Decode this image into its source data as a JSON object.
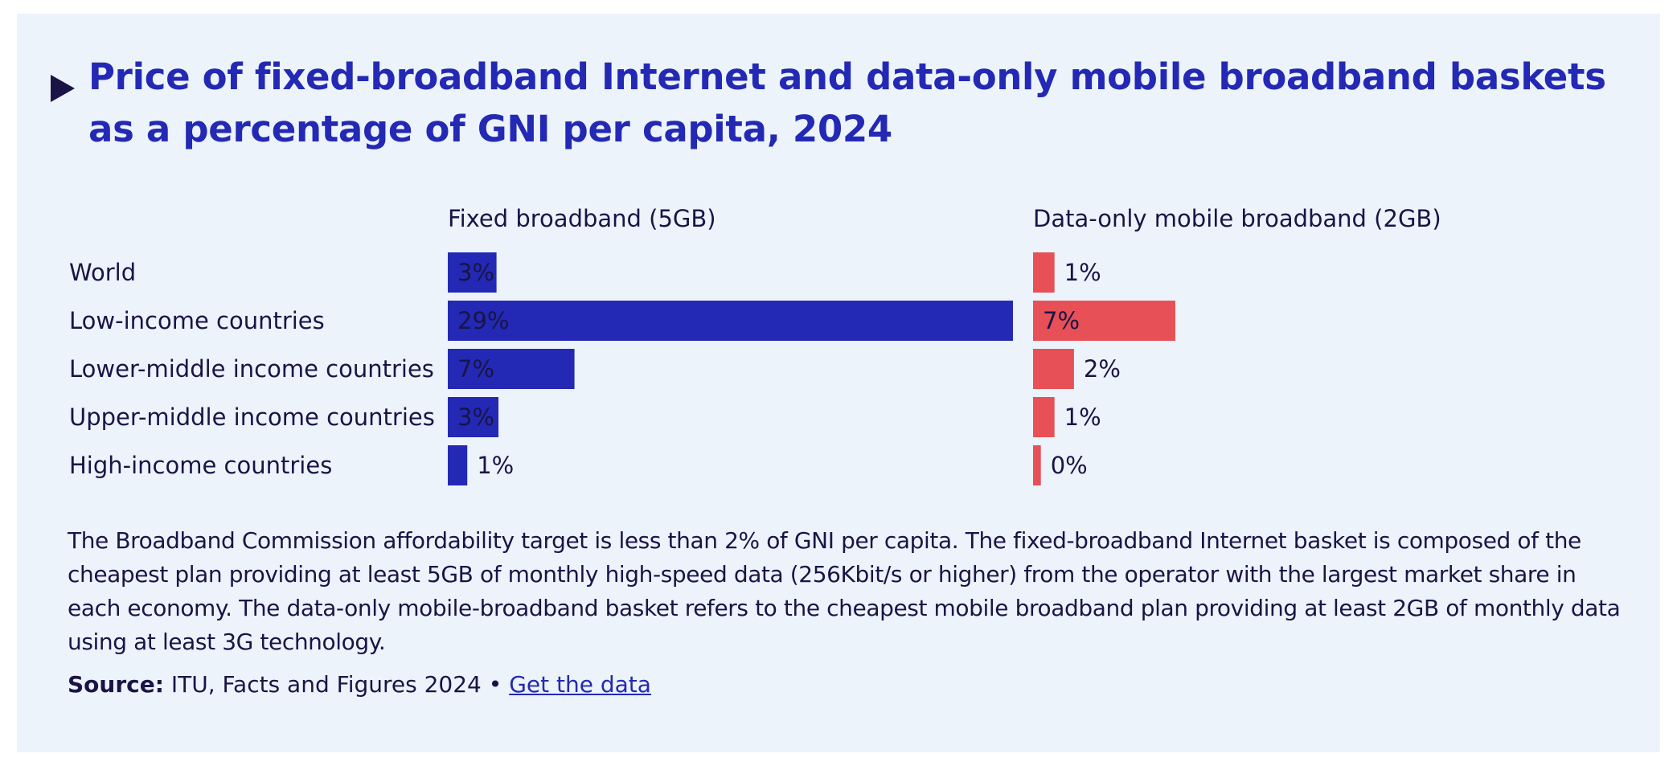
{
  "title": "Price of fixed-broadband Internet and data-only mobile broadband baskets as a percentage of GNI per capita, 2024",
  "colors": {
    "background": "#ecf3fb",
    "title": "#2329b4",
    "text": "#1a1446",
    "fixed": "#2329b4",
    "mobile": "#e65056",
    "link": "#2329b4"
  },
  "chart_data": {
    "type": "bar",
    "orientation": "horizontal",
    "title": "Price of fixed-broadband Internet and data-only mobile broadband baskets as a percentage of GNI per capita, 2024",
    "categories": [
      "World",
      "Low-income countries",
      "Lower-middle income countries",
      "Upper-middle income countries",
      "High-income countries"
    ],
    "series": [
      {
        "name": "Fixed broadband (5GB)",
        "values": [
          2.5,
          29,
          6.5,
          2.6,
          1.0
        ],
        "labels": [
          "3%",
          "29%",
          "7%",
          "3%",
          "1%"
        ],
        "color": "#2329b4"
      },
      {
        "name": "Data-only mobile broadband (2GB)",
        "values": [
          1.1,
          7.3,
          2.1,
          1.1,
          0.4
        ],
        "labels": [
          "1%",
          "7%",
          "2%",
          "1%",
          "0%"
        ],
        "color": "#e65056"
      }
    ],
    "xlim": [
      0,
      29
    ],
    "unit": "%"
  },
  "note": "The Broadband Commission affordability target is less than 2% of GNI per capita. The fixed-broadband Internet basket is composed of the cheapest plan providing at least 5GB of monthly high-speed data (256Kbit/s or higher) from the operator with the largest market share in each economy. The data-only mobile-broadband basket refers to the cheapest mobile broadband plan providing at least 2GB of monthly data using at least 3G technology.",
  "source": {
    "label": "Source:",
    "text": "ITU, Facts and Figures 2024 •",
    "link_text": "Get the data"
  }
}
